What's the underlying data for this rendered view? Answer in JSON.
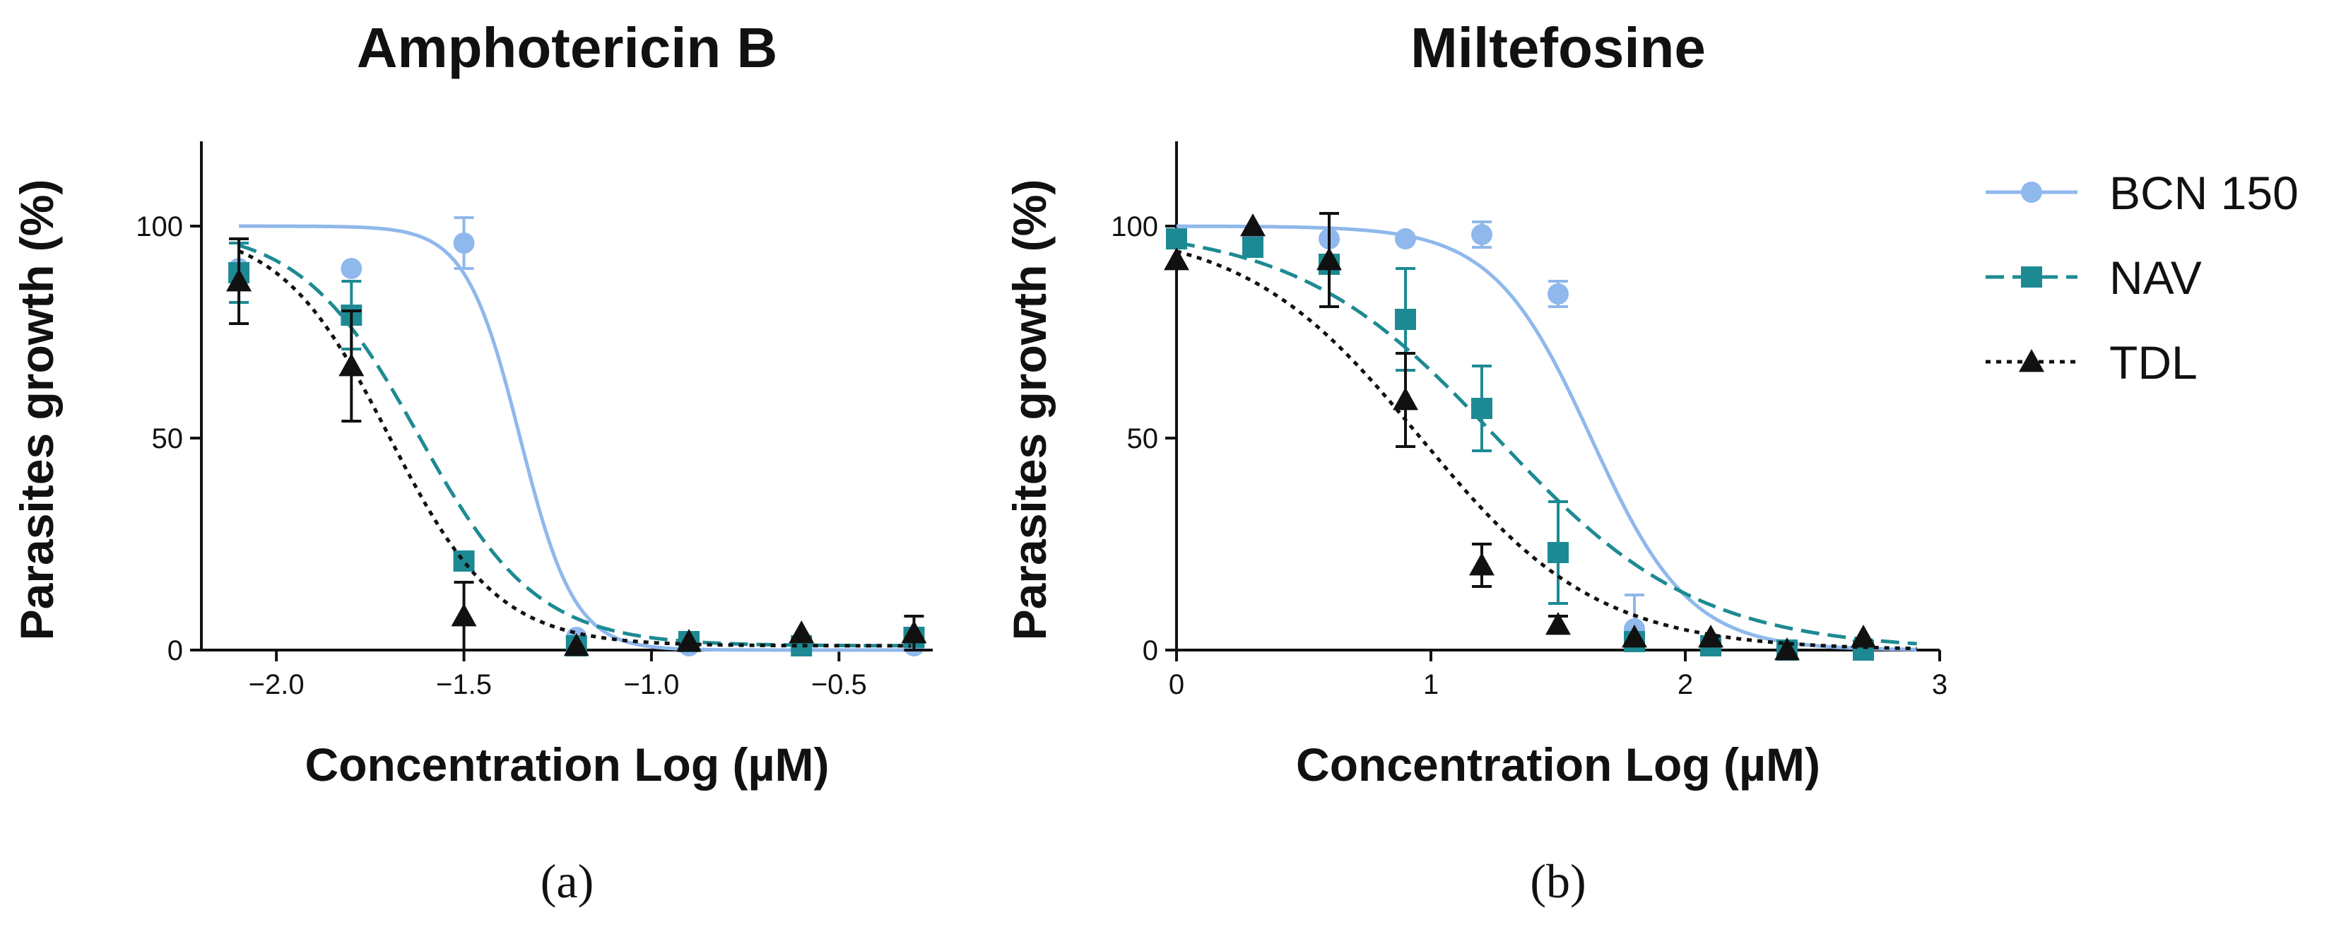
{
  "chart_data": [
    {
      "type": "line",
      "title": "Amphotericin B",
      "panel_label": "(a)",
      "xlabel": "Concentration Log (µM)",
      "ylabel": "Parasites growth (%)",
      "xlim": [
        -2.2,
        -0.25
      ],
      "ylim": [
        0,
        120
      ],
      "xticks": [
        -2.0,
        -1.5,
        -1.0,
        -0.5
      ],
      "xtick_labels": [
        "−2.0",
        "−1.5",
        "−1.0",
        "−0.5"
      ],
      "yticks": [
        0,
        50,
        100
      ],
      "ytick_labels": [
        "0",
        "50",
        "100"
      ],
      "series": [
        {
          "name": "BCN 150",
          "color": "#8fb8ec",
          "marker": "circle",
          "line_style": "solid",
          "ec50_log": -1.35,
          "hill": 12,
          "top": 100,
          "bottom": 0,
          "x": [
            -2.1,
            -1.8,
            -1.5,
            -1.2,
            -0.9,
            -0.6,
            -0.3
          ],
          "y": [
            90,
            90,
            96,
            3,
            1,
            1,
            1
          ],
          "err": [
            0,
            0,
            6,
            0,
            0,
            0,
            0
          ]
        },
        {
          "name": "NAV",
          "color": "#1d8a93",
          "marker": "square",
          "line_style": "dashed",
          "ec50_log": -1.62,
          "hill": 5.5,
          "top": 100,
          "bottom": 1,
          "x": [
            -2.1,
            -1.8,
            -1.5,
            -1.2,
            -0.9,
            -0.6,
            -0.3
          ],
          "y": [
            89,
            79,
            21,
            1,
            2,
            1,
            3
          ],
          "err": [
            7,
            8,
            2,
            0,
            0,
            0,
            2
          ]
        },
        {
          "name": "TDL",
          "color": "#111111",
          "marker": "triangle",
          "line_style": "dotted",
          "ec50_log": -1.7,
          "hill": 6,
          "top": 100,
          "bottom": 1,
          "x": [
            -2.1,
            -1.8,
            -1.5,
            -1.2,
            -0.9,
            -0.6,
            -0.3
          ],
          "y": [
            87,
            67,
            8,
            1,
            2,
            4,
            4
          ],
          "err": [
            10,
            13,
            8,
            0,
            0,
            0,
            4
          ]
        }
      ]
    },
    {
      "type": "line",
      "title": "Miltefosine",
      "panel_label": "(b)",
      "xlabel": "Concentration Log (µM)",
      "ylabel": "Parasites growth (%)",
      "xlim": [
        0,
        3
      ],
      "ylim": [
        0,
        120
      ],
      "xticks": [
        0,
        1,
        2,
        3
      ],
      "xtick_labels": [
        "0",
        "1",
        "2",
        "3"
      ],
      "yticks": [
        0,
        50,
        100
      ],
      "ytick_labels": [
        "0",
        "50",
        "100"
      ],
      "series": [
        {
          "name": "BCN 150",
          "color": "#8fb8ec",
          "marker": "circle",
          "line_style": "solid",
          "ec50_log": 1.63,
          "hill": 4.5,
          "top": 100,
          "bottom": 0,
          "x": [
            0,
            0.3,
            0.6,
            0.9,
            1.2,
            1.5,
            1.8,
            2.1,
            2.4,
            2.7
          ],
          "y": [
            97,
            97,
            97,
            97,
            98,
            84,
            5,
            1,
            0,
            1
          ],
          "err": [
            0,
            0,
            0,
            0,
            3,
            3,
            8,
            0,
            0,
            0
          ]
        },
        {
          "name": "NAV",
          "color": "#1d8a93",
          "marker": "square",
          "line_style": "dashed",
          "ec50_log": 1.26,
          "hill": 2.2,
          "top": 100,
          "bottom": 0,
          "x": [
            0,
            0.3,
            0.6,
            0.9,
            1.2,
            1.5,
            1.8,
            2.1,
            2.4,
            2.7
          ],
          "y": [
            97,
            95,
            91,
            78,
            57,
            23,
            2,
            1,
            0,
            0
          ],
          "err": [
            0,
            0,
            0,
            12,
            10,
            12,
            0,
            0,
            0,
            0
          ]
        },
        {
          "name": "TDL",
          "color": "#111111",
          "marker": "triangle",
          "line_style": "dotted",
          "ec50_log": 0.96,
          "hill": 2.5,
          "top": 100,
          "bottom": 0,
          "x": [
            0,
            0.3,
            0.6,
            0.9,
            1.2,
            1.5,
            1.8,
            2.1,
            2.4,
            2.7
          ],
          "y": [
            92,
            100,
            92,
            59,
            20,
            6,
            3,
            3,
            0,
            3
          ],
          "err": [
            0,
            0,
            11,
            11,
            5,
            2,
            0,
            0,
            0,
            0
          ]
        }
      ]
    }
  ],
  "legend": {
    "placement": "right",
    "items": [
      "BCN 150",
      "NAV",
      "TDL"
    ]
  }
}
